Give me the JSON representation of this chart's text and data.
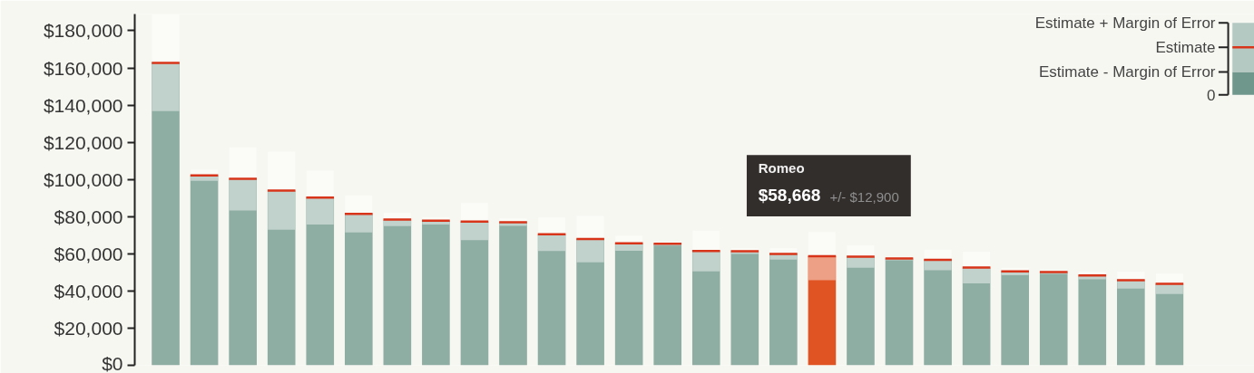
{
  "chart_data": {
    "type": "bar",
    "categories": [
      null,
      null,
      null,
      null,
      null,
      null,
      null,
      null,
      null,
      null,
      null,
      null,
      null,
      null,
      null,
      null,
      null,
      null,
      null,
      null,
      null,
      null,
      null,
      null,
      null,
      null,
      null
    ],
    "values": [
      162700,
      102200,
      100300,
      94000,
      90200,
      81500,
      78400,
      77800,
      77300,
      77000,
      70500,
      67900,
      65600,
      65400,
      61500,
      61400,
      59900,
      58668,
      58500,
      57500,
      56700,
      52600,
      50500,
      50200,
      48300,
      45800,
      43800
    ],
    "errors": [
      26000,
      3000,
      17000,
      21000,
      14500,
      10000,
      3500,
      2000,
      10000,
      2000,
      9000,
      12500,
      4000,
      1000,
      11000,
      1500,
      3000,
      12900,
      6000,
      1000,
      5500,
      8500,
      2000,
      1000,
      2000,
      4500,
      5500
    ],
    "colors": [
      "#8eada3",
      "#8eada3",
      "#8eada3",
      "#8eada3",
      "#8eada3",
      "#8eada3",
      "#8eada3",
      "#8eada3",
      "#8eada3",
      "#8eada3",
      "#8eada3",
      "#8eada3",
      "#8eada3",
      "#8eada3",
      "#8eada3",
      "#8eada3",
      "#8eada3",
      "#e05323",
      "#8eada3",
      "#8eada3",
      "#8eada3",
      "#8eada3",
      "#8eada3",
      "#8eada3",
      "#8eada3",
      "#8eada3",
      "#8eada3"
    ],
    "ylim": [
      0,
      189000
    ],
    "yticks": [
      {
        "value": 0,
        "label": "$0"
      },
      {
        "value": 20000,
        "label": "$20,000"
      },
      {
        "value": 40000,
        "label": "$40,000"
      },
      {
        "value": 60000,
        "label": "$60,000"
      },
      {
        "value": 80000,
        "label": "$80,000"
      },
      {
        "value": 100000,
        "label": "$100,000"
      },
      {
        "value": 120000,
        "label": "$120,000"
      },
      {
        "value": 140000,
        "label": "$140,000"
      },
      {
        "value": 160000,
        "label": "$160,000"
      },
      {
        "value": 180000,
        "label": "$180,000"
      }
    ],
    "grid": false,
    "annotations": [
      "Romeo",
      "$58,668",
      "+/- $12,900",
      "Estimate + Margin of Error",
      "Estimate",
      "Estimate - Margin of Error",
      "0"
    ]
  }
}
